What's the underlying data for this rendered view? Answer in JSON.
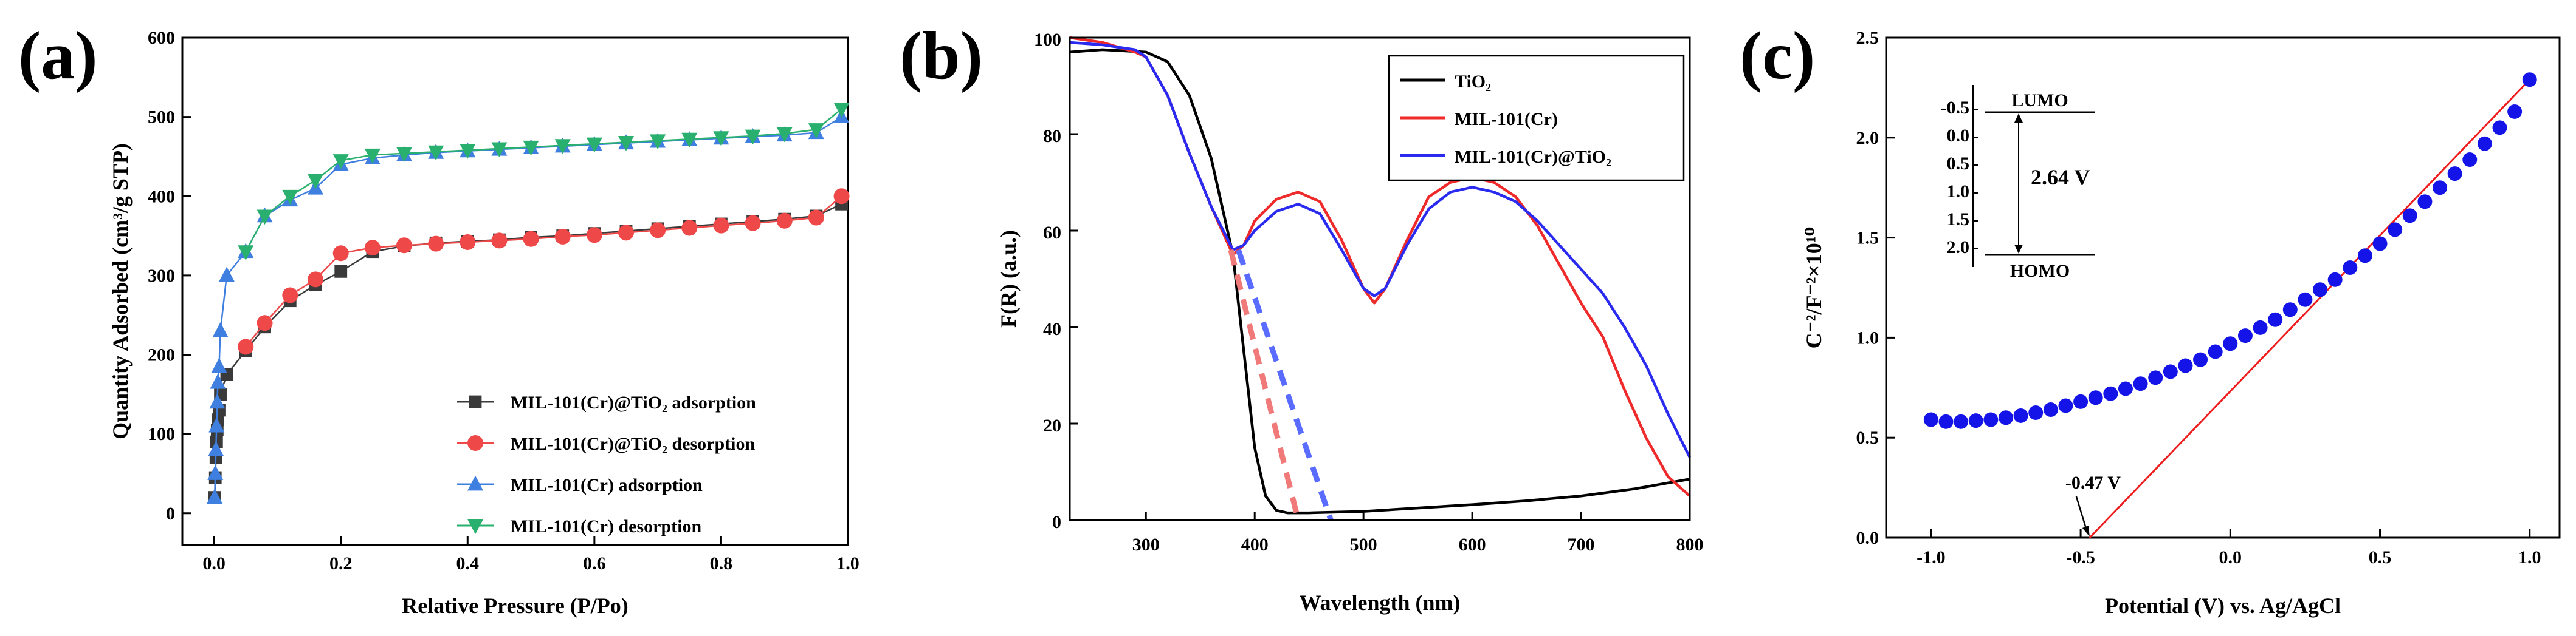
{
  "chart_data": [
    {
      "type": "scatter",
      "panel_label": "(a)",
      "xlabel": "Relative Pressure (P/Po)",
      "ylabel": "Quantity Adsorbed (cm³/g STP)",
      "xlim": [
        -0.05,
        1.0
      ],
      "ylim": [
        -40,
        600
      ],
      "xticks": [
        "0.0",
        "0.2",
        "0.4",
        "0.6",
        "0.8",
        "1.0"
      ],
      "yticks": [
        "0",
        "100",
        "200",
        "300",
        "400",
        "500",
        "600"
      ],
      "legend_position": "lower-right",
      "series": [
        {
          "name": "MIL-101(Cr)@TiO₂ adsorption",
          "color": "#3a3a3a",
          "marker": "square",
          "x": [
            0.001,
            0.002,
            0.003,
            0.004,
            0.005,
            0.006,
            0.008,
            0.01,
            0.02,
            0.05,
            0.08,
            0.12,
            0.16,
            0.2,
            0.25,
            0.3,
            0.35,
            0.4,
            0.45,
            0.5,
            0.55,
            0.6,
            0.65,
            0.7,
            0.75,
            0.8,
            0.85,
            0.9,
            0.95,
            0.99
          ],
          "y": [
            20,
            45,
            70,
            90,
            105,
            118,
            130,
            150,
            175,
            205,
            235,
            268,
            288,
            305,
            330,
            337,
            341,
            343,
            345,
            348,
            350,
            353,
            356,
            359,
            362,
            365,
            368,
            371,
            375,
            390
          ]
        },
        {
          "name": "MIL-101(Cr)@TiO₂ desorption",
          "color": "#ef4848",
          "marker": "circle",
          "x": [
            0.99,
            0.95,
            0.9,
            0.85,
            0.8,
            0.75,
            0.7,
            0.65,
            0.6,
            0.55,
            0.5,
            0.45,
            0.4,
            0.35,
            0.3,
            0.25,
            0.2,
            0.16,
            0.12,
            0.08,
            0.05
          ],
          "y": [
            400,
            373,
            369,
            366,
            363,
            360,
            357,
            354,
            351,
            349,
            346,
            344,
            342,
            340,
            338,
            335,
            328,
            295,
            275,
            240,
            210
          ]
        },
        {
          "name": "MIL-101(Cr) adsorption",
          "color": "#3f7fe0",
          "marker": "triangle-up",
          "x": [
            0.001,
            0.002,
            0.003,
            0.004,
            0.005,
            0.006,
            0.008,
            0.01,
            0.02,
            0.05,
            0.08,
            0.12,
            0.16,
            0.2,
            0.25,
            0.3,
            0.35,
            0.4,
            0.45,
            0.5,
            0.55,
            0.6,
            0.65,
            0.7,
            0.75,
            0.8,
            0.85,
            0.9,
            0.95,
            0.99
          ],
          "y": [
            20,
            50,
            80,
            110,
            140,
            165,
            185,
            230,
            300,
            330,
            375,
            395,
            410,
            440,
            448,
            452,
            455,
            457,
            459,
            461,
            463,
            465,
            467,
            469,
            471,
            473,
            475,
            477,
            480,
            500
          ]
        },
        {
          "name": "MIL-101(Cr) desorption",
          "color": "#29b06e",
          "marker": "triangle-down",
          "x": [
            0.99,
            0.95,
            0.9,
            0.85,
            0.8,
            0.75,
            0.7,
            0.65,
            0.6,
            0.55,
            0.5,
            0.45,
            0.4,
            0.35,
            0.3,
            0.25,
            0.2,
            0.16,
            0.12,
            0.08,
            0.05
          ],
          "y": [
            510,
            484,
            479,
            476,
            474,
            472,
            470,
            468,
            466,
            464,
            462,
            460,
            458,
            456,
            454,
            452,
            445,
            420,
            400,
            375,
            330
          ]
        }
      ]
    },
    {
      "type": "line",
      "panel_label": "(b)",
      "xlabel": "Wavelength (nm)",
      "ylabel": "F(R) (a.u.)",
      "xlim": [
        230,
        800
      ],
      "ylim": [
        0,
        100
      ],
      "xticks": [
        "300",
        "400",
        "500",
        "600",
        "700",
        "800"
      ],
      "yticks": [
        "0",
        "20",
        "40",
        "60",
        "80",
        "100"
      ],
      "legend_position": "top-right",
      "series": [
        {
          "name": "TiO₂",
          "color": "#000000",
          "x": [
            230,
            260,
            300,
            320,
            340,
            360,
            380,
            390,
            400,
            410,
            420,
            430,
            450,
            500,
            550,
            600,
            650,
            700,
            750,
            800
          ],
          "y": [
            97,
            97.5,
            97,
            95,
            88,
            75,
            55,
            35,
            15,
            5,
            2,
            1.5,
            1.5,
            1.8,
            2.5,
            3.2,
            4,
            5,
            6.5,
            8.5
          ]
        },
        {
          "name": "MIL-101(Cr)",
          "color": "#ee2a2a",
          "x": [
            230,
            260,
            290,
            300,
            320,
            340,
            360,
            380,
            390,
            400,
            420,
            440,
            460,
            480,
            500,
            510,
            520,
            540,
            560,
            580,
            600,
            620,
            640,
            660,
            680,
            700,
            720,
            740,
            760,
            780,
            800
          ],
          "y": [
            100,
            99,
            97,
            96,
            88,
            76,
            65,
            55,
            57,
            62,
            66.5,
            68,
            66,
            58,
            48,
            45,
            48,
            58,
            67,
            70,
            71,
            70,
            67,
            61,
            53,
            45,
            38,
            27,
            17,
            9,
            5
          ]
        },
        {
          "name": "MIL-101(Cr)@TiO₂",
          "color": "#2b2bf0",
          "x": [
            230,
            260,
            290,
            300,
            320,
            340,
            360,
            380,
            390,
            400,
            420,
            440,
            460,
            480,
            500,
            510,
            520,
            540,
            560,
            580,
            600,
            620,
            640,
            660,
            680,
            700,
            720,
            740,
            760,
            780,
            800
          ],
          "y": [
            99,
            98.5,
            97.5,
            96,
            88,
            76,
            65,
            56,
            57,
            60,
            64,
            65.5,
            63.5,
            56,
            48,
            46.5,
            48,
            57,
            64.5,
            68,
            69,
            68,
            66,
            62,
            57,
            52,
            47,
            40,
            32,
            22,
            13
          ]
        },
        {
          "name": "MIL-101(Cr) tangent",
          "color": "#f07a7a",
          "style": "dashed",
          "x": [
            378,
            440
          ],
          "y": [
            56,
            0
          ]
        },
        {
          "name": "MIL-101(Cr)@TiO₂ tangent",
          "color": "#5a6cff",
          "style": "dashed",
          "x": [
            385,
            470
          ],
          "y": [
            56,
            0
          ]
        }
      ]
    },
    {
      "type": "scatter",
      "panel_label": "(c)",
      "xlabel": "Potential (V) vs. Ag/AgCl",
      "ylabel": "C⁻²/F⁻²×10¹⁰",
      "xlim": [
        -1.15,
        1.1
      ],
      "ylim": [
        0,
        2.5
      ],
      "xticks": [
        "-1.0",
        "-0.5",
        "0.0",
        "0.5",
        "1.0"
      ],
      "yticks": [
        "0.0",
        "0.5",
        "1.0",
        "1.5",
        "2.0",
        "2.5"
      ],
      "annotation": "-0.47 V",
      "series": [
        {
          "name": "Mott-Schottky",
          "color": "#1414e8",
          "marker": "circle",
          "x": [
            -1.0,
            -0.95,
            -0.9,
            -0.85,
            -0.8,
            -0.75,
            -0.7,
            -0.65,
            -0.6,
            -0.55,
            -0.5,
            -0.45,
            -0.4,
            -0.35,
            -0.3,
            -0.25,
            -0.2,
            -0.15,
            -0.1,
            -0.05,
            0.0,
            0.05,
            0.1,
            0.15,
            0.2,
            0.25,
            0.3,
            0.35,
            0.4,
            0.45,
            0.5,
            0.55,
            0.6,
            0.65,
            0.7,
            0.75,
            0.8,
            0.85,
            0.9,
            0.95,
            1.0
          ],
          "y": [
            0.59,
            0.58,
            0.58,
            0.585,
            0.59,
            0.6,
            0.61,
            0.625,
            0.64,
            0.66,
            0.68,
            0.7,
            0.72,
            0.745,
            0.77,
            0.8,
            0.83,
            0.86,
            0.89,
            0.93,
            0.97,
            1.01,
            1.05,
            1.09,
            1.14,
            1.19,
            1.24,
            1.29,
            1.35,
            1.41,
            1.47,
            1.54,
            1.61,
            1.68,
            1.75,
            1.82,
            1.89,
            1.97,
            2.05,
            2.13,
            2.29
          ]
        },
        {
          "name": "linear fit",
          "color": "#ee1c1c",
          "style": "solid",
          "x": [
            -0.47,
            1.0
          ],
          "y": [
            0.0,
            2.29
          ]
        }
      ],
      "inset": {
        "top_label": "LUMO",
        "bottom_label": "HOMO",
        "gap_label": "2.64 V",
        "scale_ticks": [
          "-0.5",
          "0.0",
          "0.5",
          "1.0",
          "1.5",
          "2.0"
        ]
      }
    }
  ]
}
